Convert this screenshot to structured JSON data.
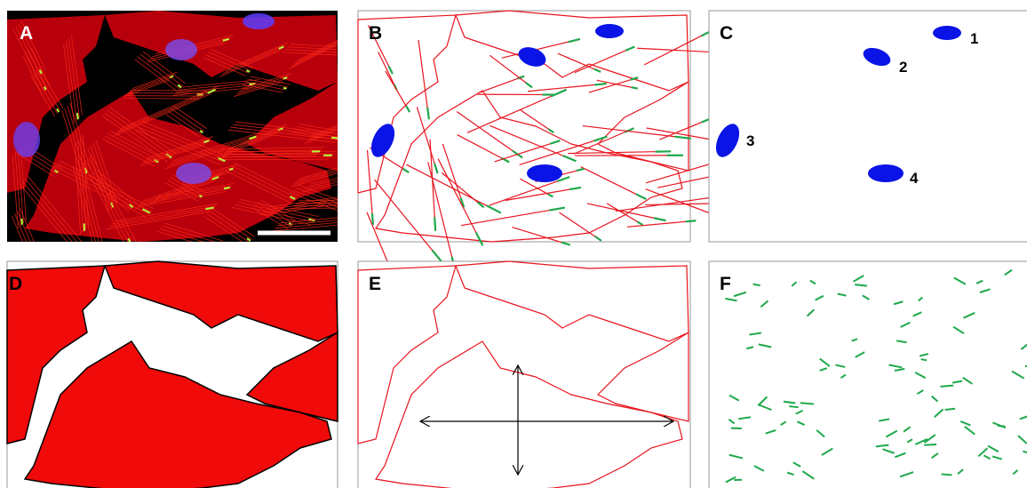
{
  "panels": [
    {
      "label": "A"
    },
    {
      "label": "B"
    },
    {
      "label": "C"
    },
    {
      "label": "D"
    },
    {
      "label": "E"
    },
    {
      "label": "F"
    }
  ],
  "nuclei_labels": [
    "1",
    "2",
    "3",
    "4"
  ]
}
